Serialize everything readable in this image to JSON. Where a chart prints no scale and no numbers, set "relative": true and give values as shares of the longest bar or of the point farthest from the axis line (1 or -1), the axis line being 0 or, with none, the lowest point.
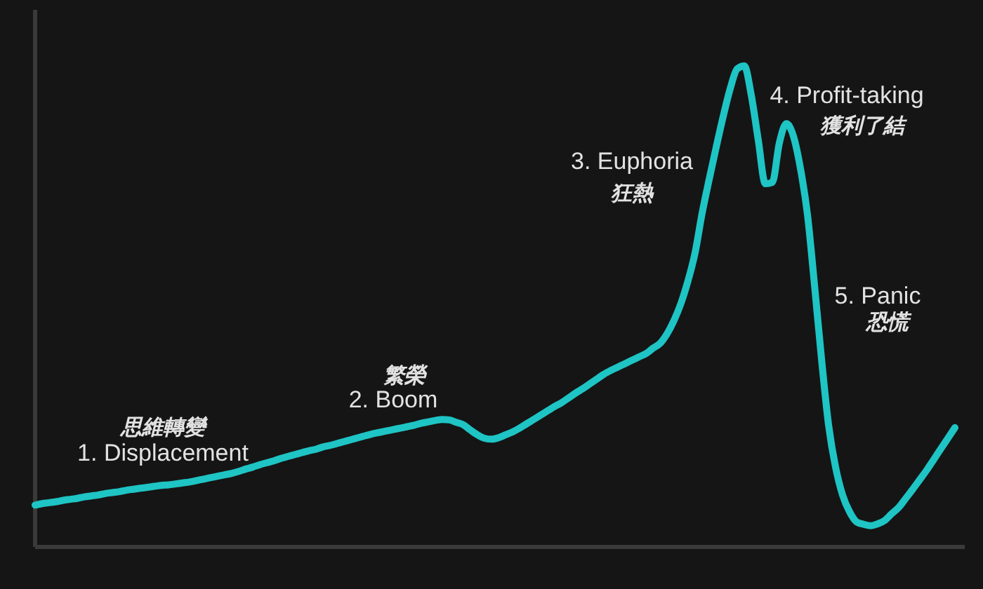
{
  "chart_data": {
    "type": "line",
    "relative": true,
    "categories": [
      null,
      null,
      null,
      null,
      null,
      null,
      null,
      null,
      null,
      null,
      null,
      null,
      null,
      null,
      null,
      null,
      null,
      null,
      null,
      null,
      null,
      null,
      null,
      null,
      null,
      null,
      null,
      null,
      null,
      null,
      null,
      null,
      null,
      null,
      null,
      null,
      null,
      null,
      null,
      null,
      null,
      null,
      null,
      null,
      null,
      null,
      null,
      null,
      null,
      null,
      null,
      null,
      null,
      null,
      null,
      null,
      null,
      null,
      null,
      null,
      null,
      null,
      null,
      null,
      null,
      null,
      null,
      null,
      null,
      null,
      null,
      null,
      null,
      null,
      null,
      null,
      null,
      null,
      null,
      null,
      null,
      null,
      null,
      null,
      null,
      null,
      null,
      null,
      null,
      null,
      null,
      null,
      null,
      null,
      null,
      null,
      null,
      null,
      null,
      null,
      null,
      null,
      null,
      null,
      null,
      null,
      null,
      null,
      null,
      null,
      null,
      null,
      null,
      null,
      null,
      null,
      null,
      null,
      null,
      null,
      null,
      null,
      null,
      null,
      null,
      null,
      null,
      null,
      null,
      null,
      null,
      null
    ],
    "series": [
      {
        "color": "#1fc4c4",
        "values": [
          0.087,
          0.09,
          0.092,
          0.094,
          0.097,
          0.099,
          0.101,
          0.104,
          0.106,
          0.108,
          0.111,
          0.113,
          0.115,
          0.118,
          0.12,
          0.122,
          0.124,
          0.126,
          0.128,
          0.129,
          0.131,
          0.133,
          0.135,
          0.138,
          0.141,
          0.144,
          0.147,
          0.15,
          0.153,
          0.157,
          0.162,
          0.166,
          0.171,
          0.175,
          0.179,
          0.184,
          0.188,
          0.192,
          0.196,
          0.2,
          0.203,
          0.208,
          0.211,
          0.215,
          0.219,
          0.223,
          0.227,
          0.231,
          0.235,
          0.238,
          0.241,
          0.244,
          0.247,
          0.25,
          0.253,
          0.257,
          0.26,
          0.263,
          0.265,
          0.264,
          0.259,
          0.254,
          0.243,
          0.233,
          0.226,
          0.224,
          0.227,
          0.233,
          0.239,
          0.247,
          0.256,
          0.265,
          0.274,
          0.283,
          0.292,
          0.3,
          0.31,
          0.32,
          0.329,
          0.339,
          0.349,
          0.359,
          0.367,
          0.374,
          0.381,
          0.388,
          0.395,
          0.402,
          0.413,
          0.423,
          0.443,
          0.471,
          0.507,
          0.554,
          0.612,
          0.694,
          0.764,
          0.831,
          0.895,
          0.953,
          0.994,
          1,
          0.939,
          0.845,
          0.755,
          0.758,
          0.84,
          0.88,
          0.854,
          0.787,
          0.691,
          0.545,
          0.391,
          0.254,
          0.166,
          0.108,
          0.073,
          0.052,
          0.047,
          0.044,
          0.048,
          0.055,
          0.069,
          0.082,
          0.101,
          0.12,
          0.14,
          0.16,
          0.182,
          0.204,
          0.226,
          0.248
        ]
      }
    ],
    "annotations": [
      "思維轉變",
      "1. Displacement",
      "繁榮",
      "2. Boom",
      "3. Euphoria",
      "狂熱",
      "4. Profit-taking",
      "獲利了結",
      "5. Panic",
      "恐慌"
    ]
  }
}
